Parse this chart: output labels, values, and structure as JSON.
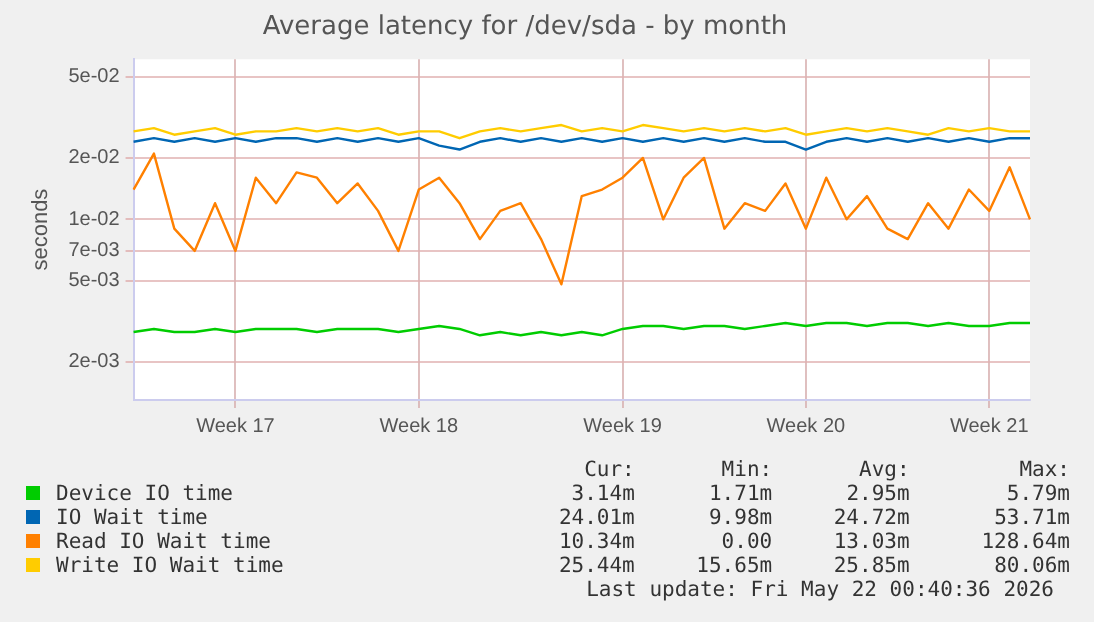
{
  "chart_data": {
    "type": "line",
    "title": "Average latency for /dev/sda - by month",
    "ylabel": "seconds",
    "log": "y",
    "grid": true,
    "legend": "bottom",
    "marker": "none",
    "line_style": "solid",
    "categories": [
      null,
      null,
      null,
      null,
      null,
      "Week 17",
      null,
      null,
      null,
      null,
      null,
      null,
      null,
      null,
      "Week 18",
      null,
      null,
      null,
      null,
      null,
      null,
      null,
      null,
      null,
      "Week 19",
      null,
      null,
      null,
      null,
      null,
      null,
      null,
      null,
      "Week 20",
      null,
      null,
      null,
      null,
      null,
      null,
      null,
      null,
      "Week 21",
      null,
      null
    ],
    "ylim": [
      0.0013,
      0.061
    ],
    "yticks": [
      {
        "value": 0.002,
        "label": "2e-03"
      },
      {
        "value": 0.005,
        "label": "5e-03"
      },
      {
        "value": 0.007,
        "label": "7e-03"
      },
      {
        "value": 0.01,
        "label": "1e-02"
      },
      {
        "value": 0.02,
        "label": "2e-02"
      },
      {
        "value": 0.05,
        "label": "5e-02"
      }
    ],
    "series": [
      {
        "name": "Device IO time",
        "color": "#00cc00",
        "values": [
          0.0028,
          0.0029,
          0.0028,
          0.0028,
          0.0029,
          0.0028,
          0.0029,
          0.0029,
          0.0029,
          0.0028,
          0.0029,
          0.0029,
          0.0029,
          0.0028,
          0.0029,
          0.003,
          0.0029,
          0.0027,
          0.0028,
          0.0027,
          0.0028,
          0.0027,
          0.0028,
          0.0027,
          0.0029,
          0.003,
          0.003,
          0.0029,
          0.003,
          0.003,
          0.0029,
          0.003,
          0.0031,
          0.003,
          0.0031,
          0.0031,
          0.003,
          0.0031,
          0.0031,
          0.003,
          0.0031,
          0.003,
          0.003,
          0.0031,
          0.0031
        ]
      },
      {
        "name": "IO Wait time",
        "color": "#0066b3",
        "values": [
          0.024,
          0.025,
          0.024,
          0.025,
          0.024,
          0.025,
          0.024,
          0.025,
          0.025,
          0.024,
          0.025,
          0.024,
          0.025,
          0.024,
          0.025,
          0.023,
          0.022,
          0.024,
          0.025,
          0.024,
          0.025,
          0.024,
          0.025,
          0.024,
          0.025,
          0.024,
          0.025,
          0.024,
          0.025,
          0.024,
          0.025,
          0.024,
          0.024,
          0.022,
          0.024,
          0.025,
          0.024,
          0.025,
          0.024,
          0.025,
          0.024,
          0.025,
          0.024,
          0.025,
          0.025
        ]
      },
      {
        "name": "Read IO Wait time",
        "color": "#ff8000",
        "values": [
          0.014,
          0.021,
          0.009,
          0.007,
          0.012,
          0.007,
          0.016,
          0.012,
          0.017,
          0.016,
          0.012,
          0.015,
          0.011,
          0.007,
          0.014,
          0.016,
          0.012,
          0.008,
          0.011,
          0.012,
          0.008,
          0.0048,
          0.013,
          0.014,
          0.016,
          0.02,
          0.01,
          0.016,
          0.02,
          0.009,
          0.012,
          0.011,
          0.015,
          0.009,
          0.016,
          0.01,
          0.013,
          0.009,
          0.008,
          0.012,
          0.009,
          0.014,
          0.011,
          0.018,
          0.01
        ]
      },
      {
        "name": "Write IO Wait time",
        "color": "#ffcc00",
        "values": [
          0.027,
          0.028,
          0.026,
          0.027,
          0.028,
          0.026,
          0.027,
          0.027,
          0.028,
          0.027,
          0.028,
          0.027,
          0.028,
          0.026,
          0.027,
          0.027,
          0.025,
          0.027,
          0.028,
          0.027,
          0.028,
          0.029,
          0.027,
          0.028,
          0.027,
          0.029,
          0.028,
          0.027,
          0.028,
          0.027,
          0.028,
          0.027,
          0.028,
          0.026,
          0.027,
          0.028,
          0.027,
          0.028,
          0.027,
          0.026,
          0.028,
          0.027,
          0.028,
          0.027,
          0.027
        ]
      }
    ],
    "annotations": [
      "Cur:",
      "Min:",
      "Avg:",
      "Max:",
      "3.14m",
      "1.71m",
      "2.95m",
      "5.79m",
      "24.01m",
      "9.98m",
      "24.72m",
      "53.71m",
      "10.34m",
      "0.00",
      "13.03m",
      "128.64m",
      "25.44m",
      "15.65m",
      "25.85m",
      "80.06m",
      "Last update: Fri May 22 00:40:36 2026"
    ]
  }
}
